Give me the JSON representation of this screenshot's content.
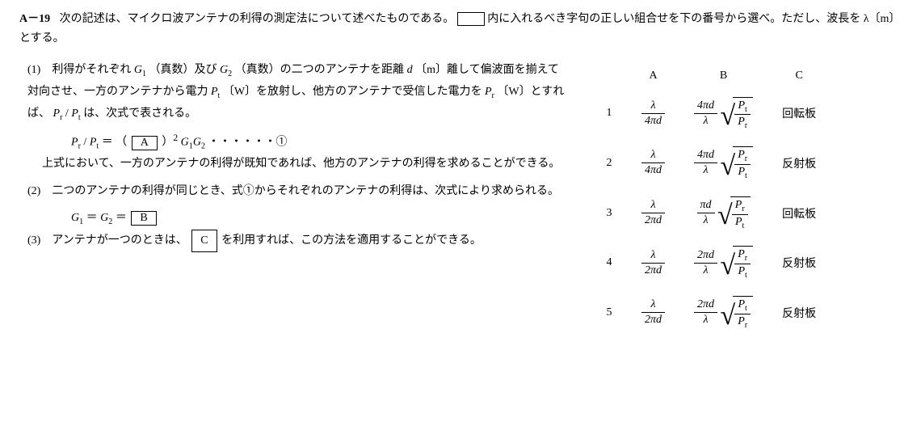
{
  "question": {
    "number": "A－19",
    "stem_1": "次の記述は、マイクロ波アンテナの利得の測定法について述べたものである。",
    "stem_2": "内に入れるべき字句の正しい組合せを下の番号から選べ。ただし、波長を λ〔m〕とする。",
    "p1_a": "(1)　利得がそれぞれ ",
    "g1": "G",
    "g1sub": "1",
    "p1_b": "（真数）及び ",
    "g2": "G",
    "g2sub": "2",
    "p1_c": "（真数）の二つのアンテナを距離 ",
    "d": "d",
    "p1_d": " 〔m〕離して偏波面を揃えて対向させ、一方のアンテナから電力 ",
    "pt": "P",
    "ptsub": "t",
    "p1_e": "〔W〕を放射し、他方のアンテナで受信した電力を ",
    "pr": "P",
    "prsub": "r",
    "p1_f": "〔W〕とすれば、",
    "p1_g": " は、次式で表される。",
    "eq1_lhs_a": "P",
    "eq1_lhs_asub": "r",
    "eq1_slash": " / ",
    "eq1_lhs_b": "P",
    "eq1_lhs_bsub": "t",
    "eq1_eq": " ＝ （ ",
    "boxA": "A",
    "eq1_rest": " ）",
    "eq1_sq": "2",
    "eq1_g": "G",
    "eq1_g1s": "1",
    "eq1_g2s": "2",
    "eq1_dots": " ・・・・・・①",
    "p1_tail": "上式において、一方のアンテナの利得が既知であれば、他方のアンテナの利得を求めることができる。",
    "p2_a": "(2)　二つのアンテナの利得が同じとき、式①からそれぞれのアンテナの利得は、次式により求められる。",
    "eq2_lhs": "G",
    "eq2_1": "1",
    "eq2_2": "2",
    "eq2_eq": " ＝ ",
    "boxB": "B",
    "p3_a": "(3)　アンテナが一つのときは、",
    "boxC": "C",
    "p3_b": " を利用すれば、この方法を適用することができる。"
  },
  "answers": {
    "headers": [
      "A",
      "B",
      "C"
    ],
    "rows": [
      {
        "n": "1",
        "A_num": "λ",
        "A_den": "4π<span class=\"italic\">d</span>",
        "B_coef_num": "4π<span class=\"italic\">d</span>",
        "B_coef_den": "λ",
        "B_sqrt_num": "<span class=\"italic\">P</span><span class=\"sub-sc upright\">t</span>",
        "B_sqrt_den": "<span class=\"italic\">P</span><span class=\"sub-sc upright\">r</span>",
        "C": "回転板"
      },
      {
        "n": "2",
        "A_num": "λ",
        "A_den": "4π<span class=\"italic\">d</span>",
        "B_coef_num": "4π<span class=\"italic\">d</span>",
        "B_coef_den": "λ",
        "B_sqrt_num": "<span class=\"italic\">P</span><span class=\"sub-sc upright\">r</span>",
        "B_sqrt_den": "<span class=\"italic\">P</span><span class=\"sub-sc upright\">t</span>",
        "C": "反射板"
      },
      {
        "n": "3",
        "A_num": "λ",
        "A_den": "2π<span class=\"italic\">d</span>",
        "B_coef_num": "π<span class=\"italic\">d</span>",
        "B_coef_den": "λ",
        "B_sqrt_num": "<span class=\"italic\">P</span><span class=\"sub-sc upright\">r</span>",
        "B_sqrt_den": "<span class=\"italic\">P</span><span class=\"sub-sc upright\">t</span>",
        "C": "回転板"
      },
      {
        "n": "4",
        "A_num": "λ",
        "A_den": "2π<span class=\"italic\">d</span>",
        "B_coef_num": "2π<span class=\"italic\">d</span>",
        "B_coef_den": "λ",
        "B_sqrt_num": "<span class=\"italic\">P</span><span class=\"sub-sc upright\">r</span>",
        "B_sqrt_den": "<span class=\"italic\">P</span><span class=\"sub-sc upright\">t</span>",
        "C": "反射板"
      },
      {
        "n": "5",
        "A_num": "λ",
        "A_den": "2π<span class=\"italic\">d</span>",
        "B_coef_num": "2π<span class=\"italic\">d</span>",
        "B_coef_den": "λ",
        "B_sqrt_num": "<span class=\"italic\">P</span><span class=\"sub-sc upright\">t</span>",
        "B_sqrt_den": "<span class=\"italic\">P</span><span class=\"sub-sc upright\">r</span>",
        "C": "反射板"
      }
    ]
  }
}
